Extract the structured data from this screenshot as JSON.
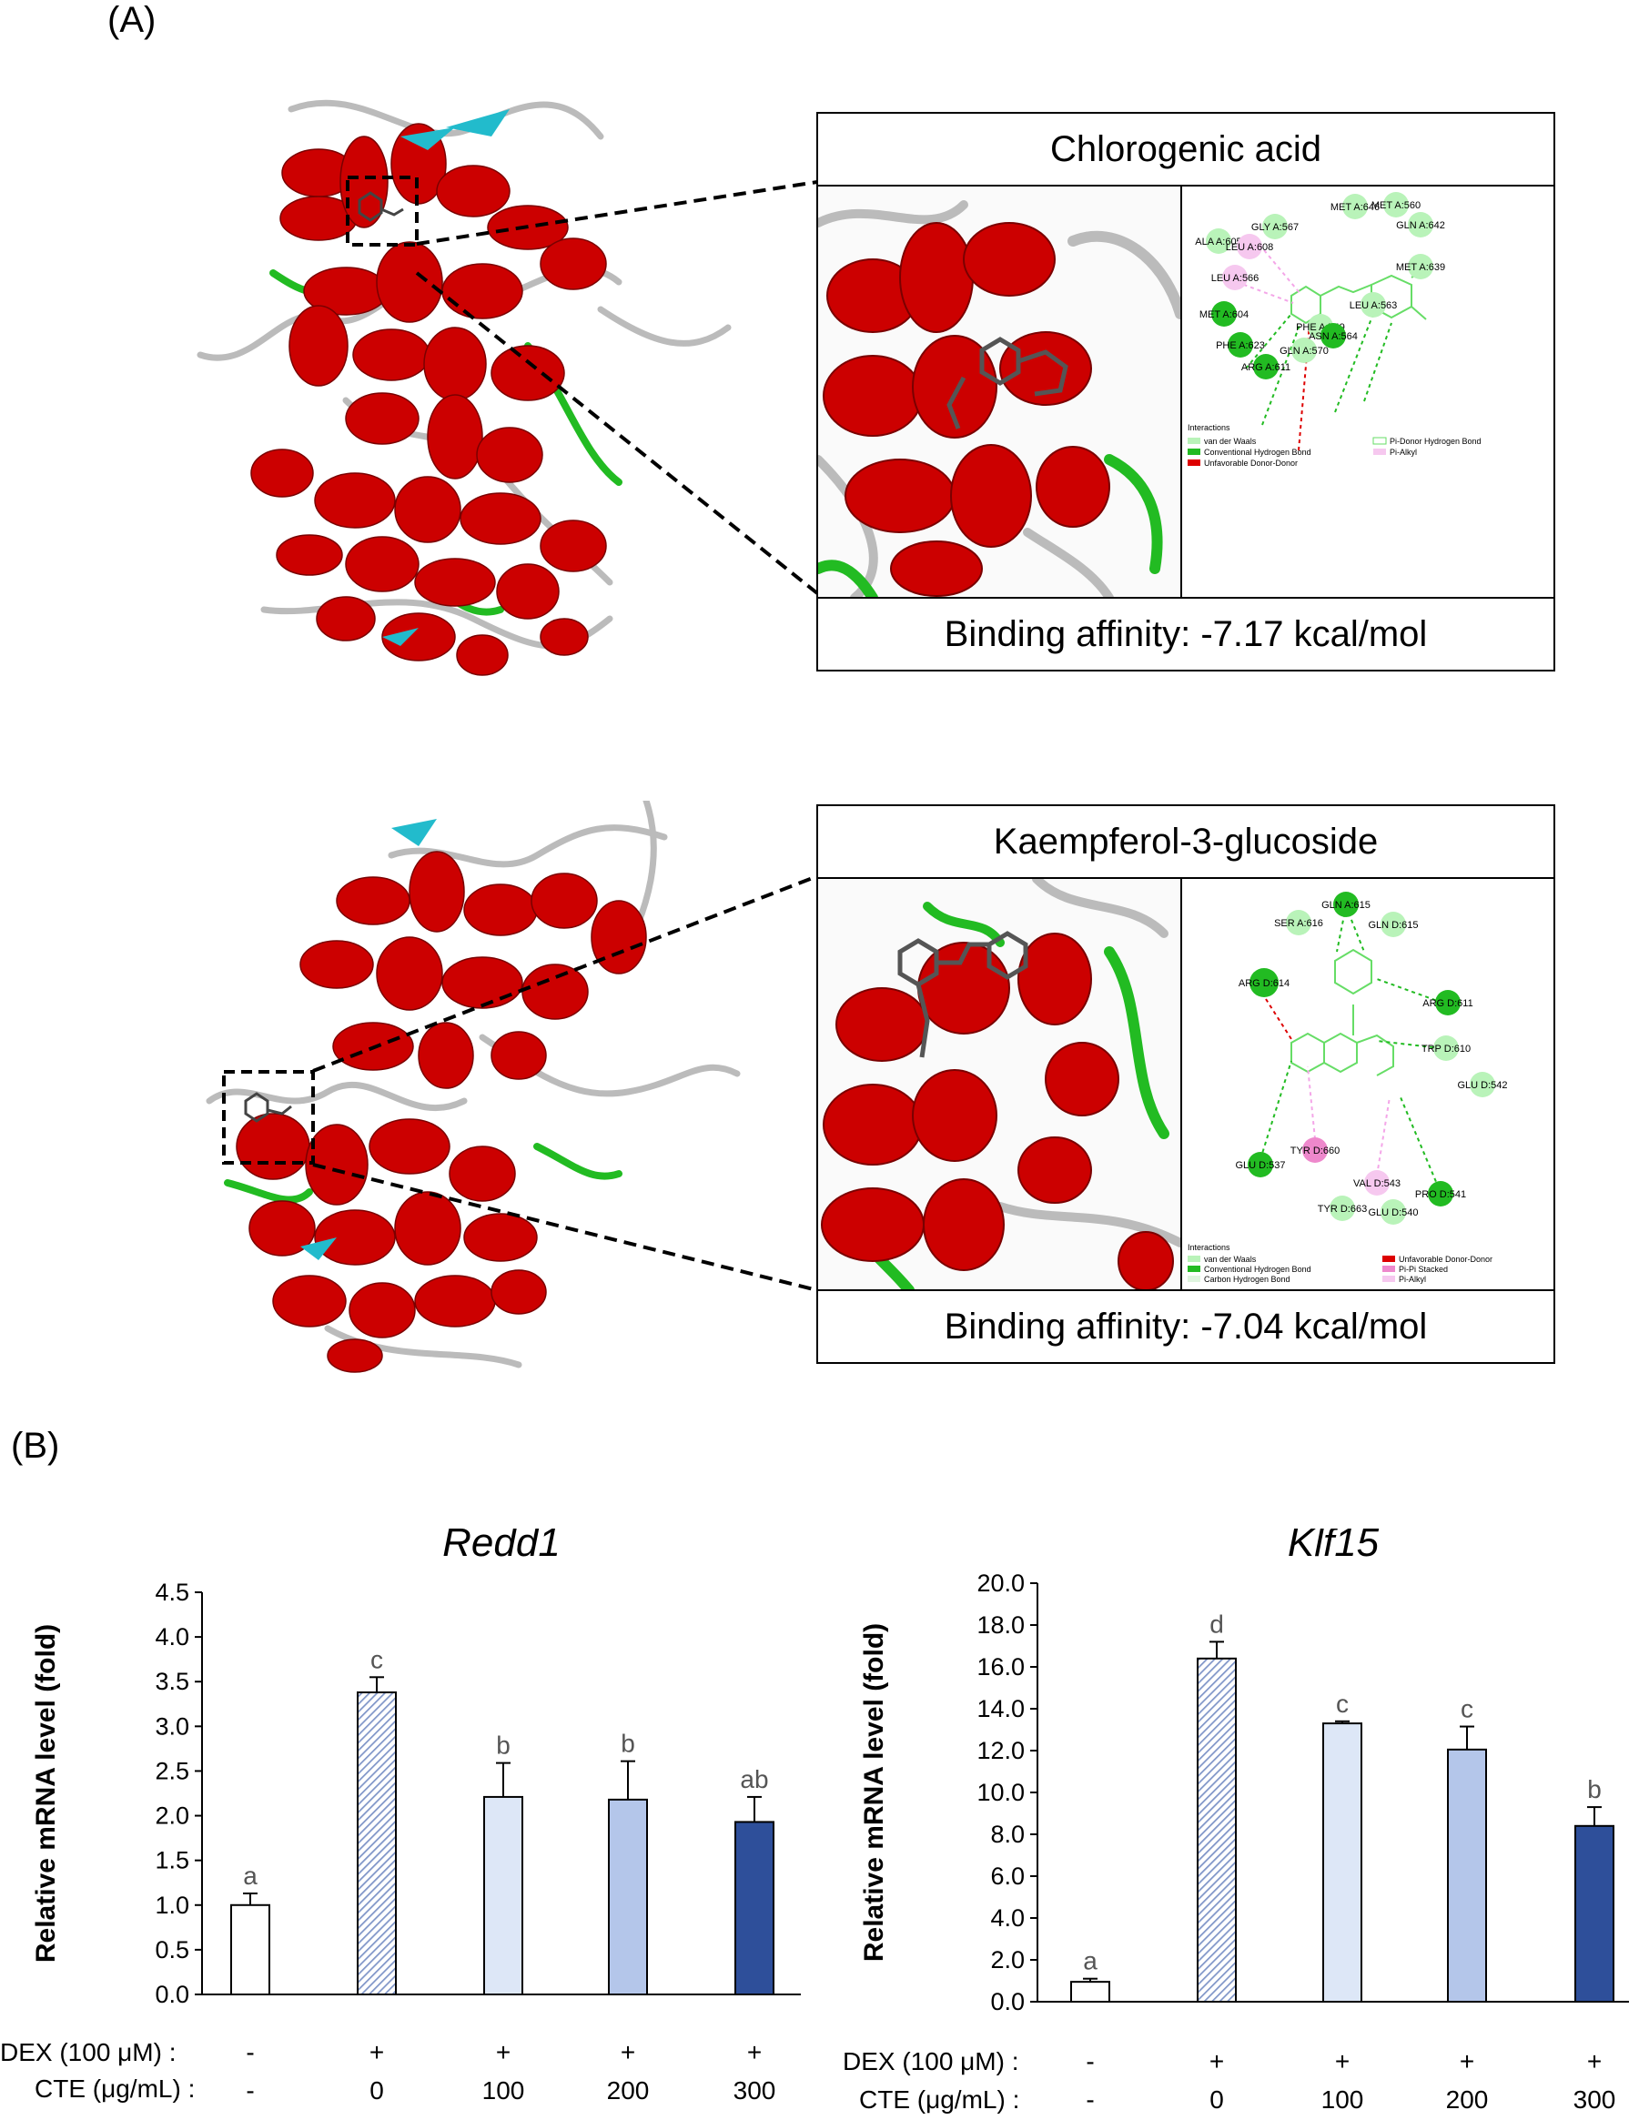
{
  "panelA": {
    "label": "(A)",
    "top": {
      "compound": "Chlorogenic acid",
      "affinity": "Binding affinity: -7.17 kcal/mol",
      "residues": [
        "MET A:646",
        "MET A:560",
        "GLY A:567",
        "GLN A:642",
        "ALA A:605",
        "LEU A:608",
        "MET A:639",
        "LEU A:566",
        "LEU A:563",
        "MET A:604",
        "PHE A:749",
        "ASN A:564",
        "PHE A:623",
        "GLN A:570",
        "ARG A:611"
      ],
      "legend_title": "Interactions",
      "legend": [
        "van der Waals",
        "Pi-Donor Hydrogen Bond",
        "Conventional Hydrogen Bond",
        "Pi-Alkyl",
        "Unfavorable Donor-Donor"
      ]
    },
    "bottom": {
      "compound": "Kaempferol-3-glucoside",
      "affinity": "Binding affinity: -7.04 kcal/mol",
      "residues": [
        "GLN A:615",
        "SER A:616",
        "GLN D:615",
        "ARG D:614",
        "ARG D:611",
        "TRP D:610",
        "GLU D:542",
        "GLU D:537",
        "TYR D:660",
        "VAL D:543",
        "PRO D:541",
        "TYR D:663",
        "GLU D:540"
      ],
      "legend_title": "Interactions",
      "legend": [
        "van der Waals",
        "Unfavorable Donor-Donor",
        "Conventional Hydrogen Bond",
        "Pi-Pi Stacked",
        "Carbon Hydrogen Bond",
        "Pi-Alkyl"
      ]
    }
  },
  "panelB": {
    "label": "(B)",
    "dex_label": "DEX (100 μM) :",
    "cte_label": "CTE (μg/mL) :",
    "dex": [
      "-",
      "+",
      "+",
      "+",
      "+"
    ],
    "cte": [
      "-",
      "0",
      "100",
      "200",
      "300"
    ]
  },
  "colors": {
    "helix": "#cc0000",
    "coil": "#bbbbbb",
    "turn": "#22bb22",
    "sheet": "#22bbcc",
    "bar_dex": "#7f95c8",
    "bar_100": "#dde7f7",
    "bar_200": "#b4c6ea",
    "bar_300": "#2e4f9a"
  },
  "chart_data": [
    {
      "type": "bar",
      "title": "Redd1",
      "ylabel": "Relative mRNA level (fold)",
      "ylim": [
        0,
        4.5
      ],
      "yticks": [
        "0.0",
        "0.5",
        "1.0",
        "1.5",
        "2.0",
        "2.5",
        "3.0",
        "3.5",
        "4.0",
        "4.5"
      ],
      "values": [
        1.0,
        3.38,
        2.21,
        2.18,
        1.93
      ],
      "errors": [
        0.13,
        0.17,
        0.38,
        0.43,
        0.28
      ],
      "letters": [
        "a",
        "c",
        "b",
        "b",
        "ab"
      ]
    },
    {
      "type": "bar",
      "title": "Klf15",
      "ylabel": "Relative mRNA level (fold)",
      "ylim": [
        0,
        20
      ],
      "yticks": [
        "0.0",
        "2.0",
        "4.0",
        "6.0",
        "8.0",
        "10.0",
        "12.0",
        "14.0",
        "16.0",
        "18.0",
        "20.0"
      ],
      "values": [
        0.95,
        16.4,
        13.3,
        12.05,
        8.4
      ],
      "errors": [
        0.15,
        0.8,
        0.1,
        1.1,
        0.9
      ],
      "letters": [
        "a",
        "d",
        "c",
        "c",
        "b"
      ]
    }
  ]
}
